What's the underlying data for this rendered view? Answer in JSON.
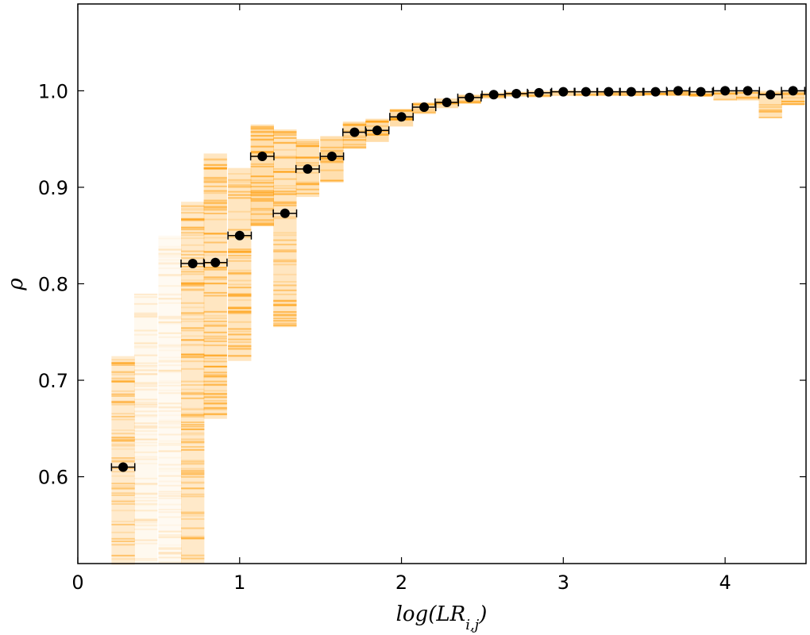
{
  "chart_data": {
    "type": "scatter",
    "title": "",
    "xlabel": "log(LR_{i,j})",
    "ylabel": "ρ",
    "xlim": [
      0,
      4.5
    ],
    "ylim": [
      0.51,
      1.09
    ],
    "x_ticks": [
      0,
      1,
      2,
      3,
      4
    ],
    "y_ticks": [
      0.6,
      0.7,
      0.8,
      0.9,
      1.0
    ],
    "x_tick_labels": [
      "0",
      "1",
      "2",
      "3",
      "4"
    ],
    "y_tick_labels": [
      "0.6",
      "0.7",
      "0.8",
      "0.9",
      "1.0"
    ],
    "grid": false,
    "bin_halfwidth": 0.072,
    "series": [
      {
        "marker_color": "#000000",
        "band_color": "#FF9900",
        "points": [
          {
            "x": 0.28,
            "y": 0.61,
            "band": [
              0.51,
              0.725
            ],
            "density": 0.55
          },
          {
            "x": 0.42,
            "y": null,
            "band": [
              0.51,
              0.79
            ],
            "density": 0.18
          },
          {
            "x": 0.57,
            "y": null,
            "band": [
              0.51,
              0.85
            ],
            "density": 0.15
          },
          {
            "x": 0.71,
            "y": 0.821,
            "band": [
              0.51,
              0.885
            ],
            "density": 0.6
          },
          {
            "x": 0.85,
            "y": 0.822,
            "band": [
              0.66,
              0.935
            ],
            "density": 0.7
          },
          {
            "x": 1.0,
            "y": 0.85,
            "band": [
              0.72,
              0.92
            ],
            "density": 0.7
          },
          {
            "x": 1.14,
            "y": 0.932,
            "band": [
              0.86,
              0.965
            ],
            "density": 0.9
          },
          {
            "x": 1.28,
            "y": 0.873,
            "band": [
              0.755,
              0.96
            ],
            "density": 0.7
          },
          {
            "x": 1.42,
            "y": 0.919,
            "band": [
              0.89,
              0.95
            ],
            "density": 0.8
          },
          {
            "x": 1.57,
            "y": 0.932,
            "band": [
              0.905,
              0.953
            ],
            "density": 0.9
          },
          {
            "x": 1.71,
            "y": 0.957,
            "band": [
              0.94,
              0.968
            ],
            "density": 0.95
          },
          {
            "x": 1.85,
            "y": 0.959,
            "band": [
              0.947,
              0.971
            ],
            "density": 0.95
          },
          {
            "x": 2.0,
            "y": 0.973,
            "band": [
              0.963,
              0.981
            ],
            "density": 0.95
          },
          {
            "x": 2.14,
            "y": 0.983,
            "band": [
              0.976,
              0.988
            ],
            "density": 0.95
          },
          {
            "x": 2.28,
            "y": 0.988,
            "band": [
              0.982,
              0.992
            ],
            "density": 0.95
          },
          {
            "x": 2.42,
            "y": 0.993,
            "band": [
              0.988,
              0.996
            ],
            "density": 0.95
          },
          {
            "x": 2.57,
            "y": 0.996,
            "band": [
              0.992,
              0.998
            ],
            "density": 0.95
          },
          {
            "x": 2.71,
            "y": 0.997,
            "band": [
              0.994,
              0.999
            ],
            "density": 0.95
          },
          {
            "x": 2.85,
            "y": 0.998,
            "band": [
              0.995,
              1.0
            ],
            "density": 0.95
          },
          {
            "x": 3.0,
            "y": 0.999,
            "band": [
              0.996,
              1.0
            ],
            "density": 0.95
          },
          {
            "x": 3.14,
            "y": 0.999,
            "band": [
              0.996,
              1.0
            ],
            "density": 0.95
          },
          {
            "x": 3.28,
            "y": 0.999,
            "band": [
              0.996,
              1.0
            ],
            "density": 0.95
          },
          {
            "x": 3.42,
            "y": 0.999,
            "band": [
              0.996,
              1.0
            ],
            "density": 0.95
          },
          {
            "x": 3.57,
            "y": 0.999,
            "band": [
              0.996,
              1.0
            ],
            "density": 0.95
          },
          {
            "x": 3.71,
            "y": 1.0,
            "band": [
              0.996,
              1.0
            ],
            "density": 0.95
          },
          {
            "x": 3.85,
            "y": 0.999,
            "band": [
              0.994,
              1.0
            ],
            "density": 0.95
          },
          {
            "x": 4.0,
            "y": 1.0,
            "band": [
              0.99,
              1.0
            ],
            "density": 0.9
          },
          {
            "x": 4.14,
            "y": 1.0,
            "band": [
              0.99,
              1.0
            ],
            "density": 0.9
          },
          {
            "x": 4.28,
            "y": 0.996,
            "band": [
              0.973,
              1.0
            ],
            "density": 0.8
          },
          {
            "x": 4.42,
            "y": 1.0,
            "band": [
              0.985,
              1.0
            ],
            "density": 0.9
          }
        ]
      }
    ]
  }
}
